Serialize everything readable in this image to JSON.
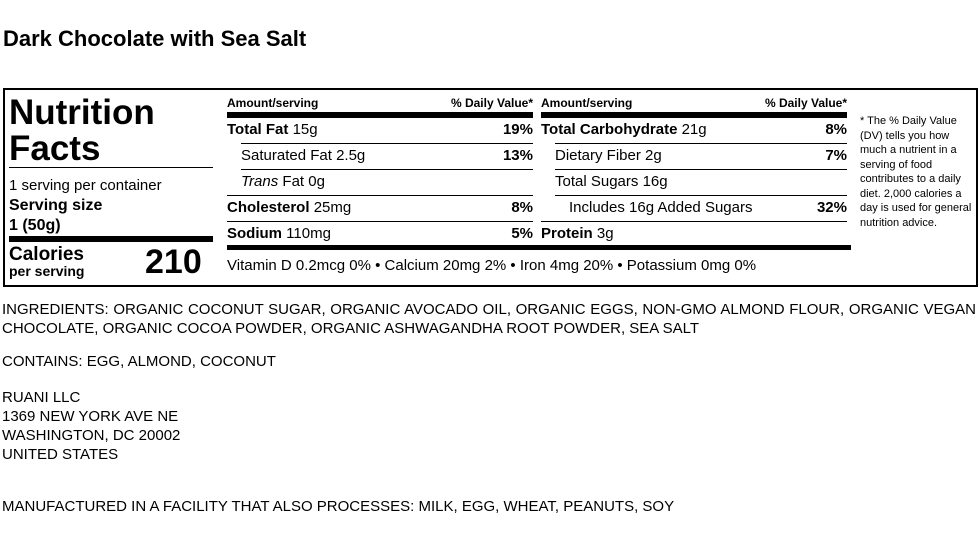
{
  "title": "Dark Chocolate with Sea Salt",
  "label": {
    "heading": "Nutrition Facts",
    "servings": "1 serving per container",
    "serving_size_label": "Serving size",
    "serving_size": "1 (50g)",
    "calories_label": "Calories",
    "calories_sub": "per serving",
    "calories": 210,
    "columns": [
      {
        "amount_header": "Amount/serving",
        "dv_header": "% Daily Value*",
        "rows": [
          {
            "name": "Total Fat",
            "amount": "15g",
            "dv": "19%",
            "bold": true,
            "indent": 0
          },
          {
            "name": "Saturated Fat",
            "amount": "2.5g",
            "dv": "13%",
            "bold": false,
            "indent": 1
          },
          {
            "prefix": "Trans",
            "name": "Fat",
            "amount": "0g",
            "bold": false,
            "indent": 1
          },
          {
            "name": "Cholesterol",
            "amount": "25mg",
            "dv": "8%",
            "bold": true,
            "indent": 0
          },
          {
            "name": "Sodium",
            "amount": "110mg",
            "dv": "5%",
            "bold": true,
            "indent": 0
          }
        ]
      },
      {
        "amount_header": "Amount/serving",
        "dv_header": "% Daily Value*",
        "rows": [
          {
            "name": "Total Carbohydrate",
            "amount": "21g",
            "dv": "8%",
            "bold": true,
            "indent": 0
          },
          {
            "name": "Dietary Fiber",
            "amount": "2g",
            "dv": "7%",
            "bold": false,
            "indent": 1
          },
          {
            "name": "Total Sugars",
            "amount": "16g",
            "bold": false,
            "indent": 1
          },
          {
            "name": "Includes 16g Added Sugars",
            "dv": "32%",
            "bold": false,
            "indent": 2
          },
          {
            "name": "Protein",
            "amount": "3g",
            "bold": true,
            "indent": 0
          }
        ]
      }
    ],
    "vitamins": "Vitamin D 0.2mcg 0% • Calcium 20mg 2% • Iron 4mg 20% • Potassium 0mg 0%",
    "footnote": "* The % Daily Value (DV) tells you how much a nutrient in a serving of food contributes to a daily diet. 2,000 calories a day is used for general nutrition advice."
  },
  "ingredients": "INGREDIENTS: ORGANIC COCONUT SUGAR, ORGANIC AVOCADO OIL, ORGANIC EGGS, NON-GMO ALMOND FLOUR, ORGANIC VEGAN CHOCOLATE, ORGANIC COCOA POWDER, ORGANIC ASHWAGANDHA ROOT POWDER, SEA SALT",
  "contains": "CONTAINS: EGG, ALMOND, COCONUT",
  "address": [
    "RUANI LLC",
    "1369 NEW YORK AVE NE",
    "WASHINGTON, DC 20002",
    "UNITED STATES"
  ],
  "facility": "MANUFACTURED IN A FACILITY THAT ALSO PROCESSES: MILK, EGG, WHEAT, PEANUTS, SOY"
}
